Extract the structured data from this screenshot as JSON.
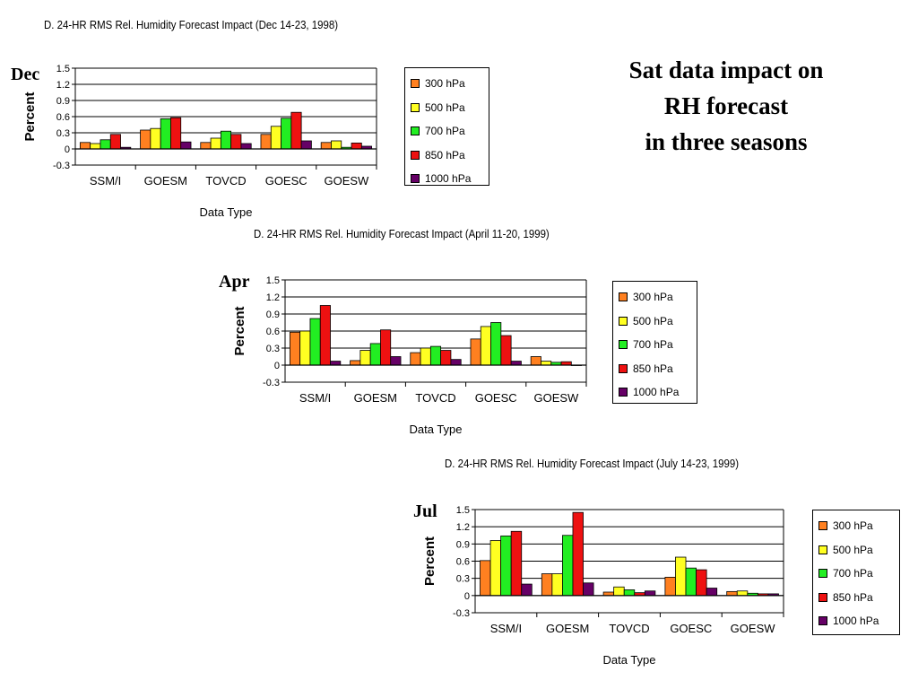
{
  "slide_title": [
    "Sat data impact on",
    "RH forecast",
    "in three seasons"
  ],
  "series_colors": [
    "#FF8020",
    "#FFFF22",
    "#22EE22",
    "#EE1111",
    "#660066"
  ],
  "chart_data": [
    {
      "type": "bar",
      "season_label": "Dec",
      "title": "D.  24-HR RMS Rel. Humidity Forecast Impact (Dec 14-23, 1998)",
      "xlabel": "Data Type",
      "ylabel": "Percent",
      "ylim": [
        -0.3,
        1.5
      ],
      "yticks": [
        "1.5",
        "1.2",
        "0.9",
        "0.6",
        "0.3",
        "0",
        "-0.3"
      ],
      "tick_values": [
        1.5,
        1.2,
        0.9,
        0.6,
        0.3,
        0,
        -0.3
      ],
      "grid": true,
      "legend_position": "right",
      "categories": [
        "SSM/I",
        "GOESM",
        "TOVCD",
        "GOESC",
        "GOESW"
      ],
      "series": [
        {
          "name": "300 hPa",
          "values": [
            0.12,
            0.35,
            0.12,
            0.27,
            0.12
          ]
        },
        {
          "name": "500 hPa",
          "values": [
            0.1,
            0.38,
            0.2,
            0.42,
            0.15
          ]
        },
        {
          "name": "700 hPa",
          "values": [
            0.17,
            0.56,
            0.33,
            0.57,
            0.03
          ]
        },
        {
          "name": "850 hPa",
          "values": [
            0.27,
            0.58,
            0.27,
            0.68,
            0.11
          ]
        },
        {
          "name": "1000 hPa",
          "values": [
            0.03,
            0.13,
            0.1,
            0.15,
            0.05
          ]
        }
      ]
    },
    {
      "type": "bar",
      "season_label": "Apr",
      "title": "D.  24-HR RMS Rel. Humidity Forecast Impact (April 11-20, 1999)",
      "xlabel": "Data Type",
      "ylabel": "Percent",
      "ylim": [
        -0.3,
        1.5
      ],
      "yticks": [
        "1.5",
        "1.2",
        "0.9",
        "0.6",
        "0.3",
        "0",
        "-0.3"
      ],
      "tick_values": [
        1.5,
        1.2,
        0.9,
        0.6,
        0.3,
        0,
        -0.3
      ],
      "grid": true,
      "legend_position": "right",
      "categories": [
        "SSM/I",
        "GOESM",
        "TOVCD",
        "GOESC",
        "GOESW"
      ],
      "series": [
        {
          "name": "300 hPa",
          "values": [
            0.58,
            0.08,
            0.22,
            0.46,
            0.15
          ]
        },
        {
          "name": "500 hPa",
          "values": [
            0.6,
            0.26,
            0.3,
            0.68,
            0.07
          ]
        },
        {
          "name": "700 hPa",
          "values": [
            0.82,
            0.38,
            0.33,
            0.75,
            0.05
          ]
        },
        {
          "name": "850 hPa",
          "values": [
            1.05,
            0.62,
            0.26,
            0.52,
            0.06
          ]
        },
        {
          "name": "1000 hPa",
          "values": [
            0.07,
            0.15,
            0.1,
            0.07,
            0.0
          ]
        }
      ]
    },
    {
      "type": "bar",
      "season_label": "Jul",
      "title": "D.  24-HR RMS Rel. Humidity Forecast Impact (July 14-23, 1999)",
      "xlabel": "Data Type",
      "ylabel": "Percent",
      "ylim": [
        -0.3,
        1.5
      ],
      "yticks": [
        "1.5",
        "1.2",
        "0.9",
        "0.6",
        "0.3",
        "0",
        "-0.3"
      ],
      "tick_values": [
        1.5,
        1.2,
        0.9,
        0.6,
        0.3,
        0,
        -0.3
      ],
      "grid": true,
      "legend_position": "right",
      "categories": [
        "SSM/I",
        "GOESM",
        "TOVCD",
        "GOESC",
        "GOESW"
      ],
      "series": [
        {
          "name": "300 hPa",
          "values": [
            0.61,
            0.38,
            0.06,
            0.32,
            0.07
          ]
        },
        {
          "name": "500 hPa",
          "values": [
            0.96,
            0.38,
            0.15,
            0.67,
            0.08
          ]
        },
        {
          "name": "700 hPa",
          "values": [
            1.04,
            1.05,
            0.1,
            0.48,
            0.04
          ]
        },
        {
          "name": "850 hPa",
          "values": [
            1.12,
            1.45,
            0.05,
            0.45,
            0.03
          ]
        },
        {
          "name": "1000 hPa",
          "values": [
            0.2,
            0.22,
            0.08,
            0.13,
            0.03
          ]
        }
      ]
    }
  ]
}
